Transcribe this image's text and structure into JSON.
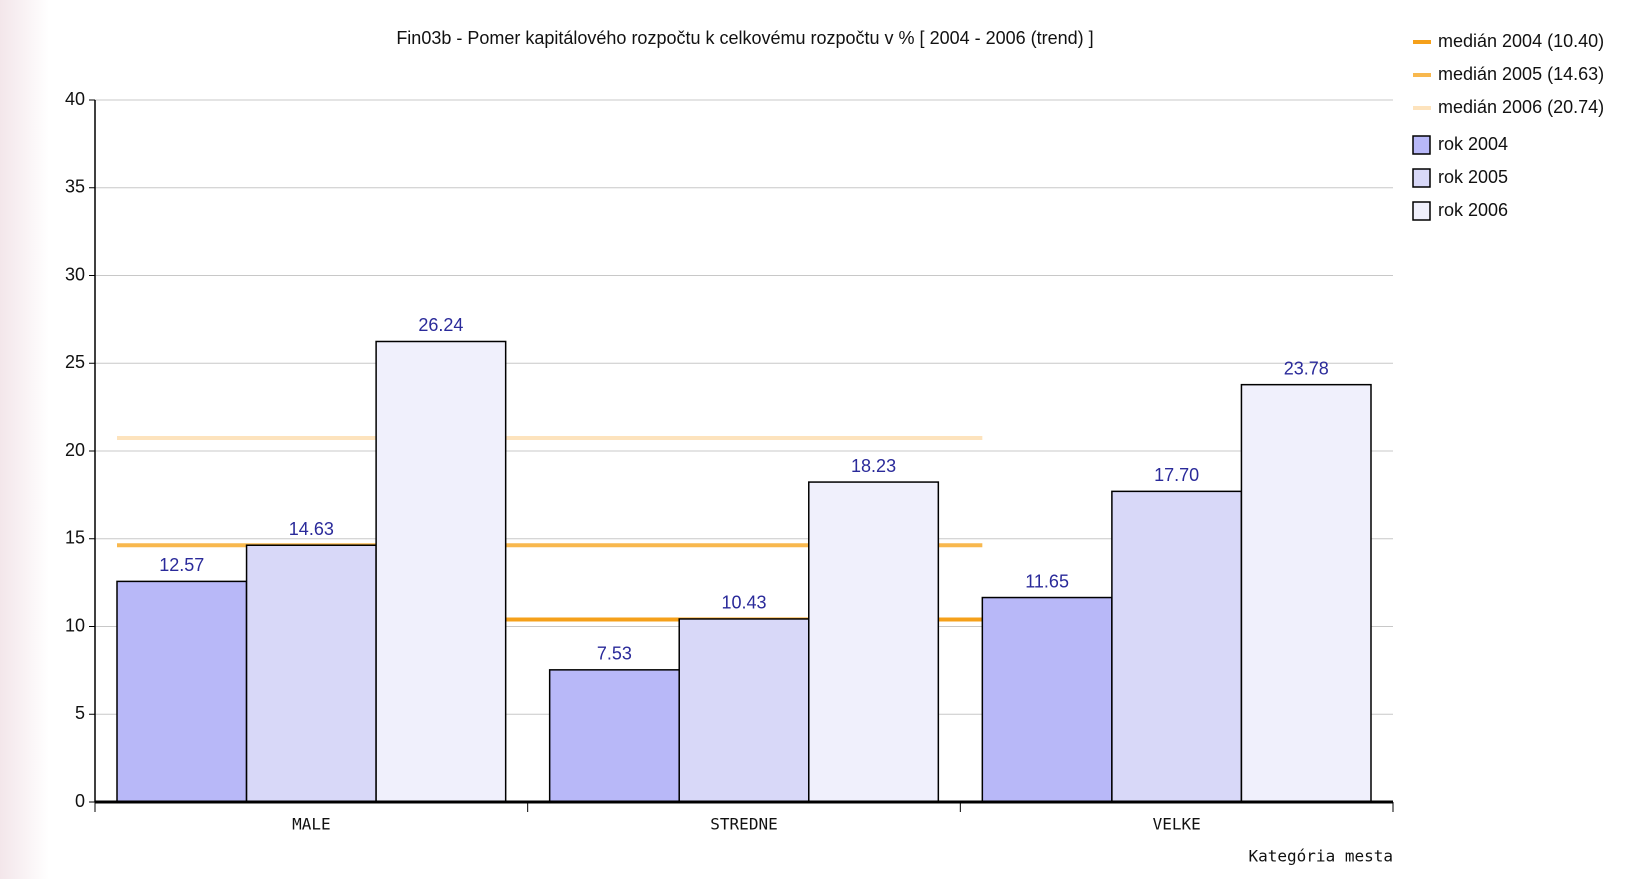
{
  "chart_data": {
    "type": "bar",
    "title": "Fin03b - Pomer kapitálového rozpočtu k celkovému rozpočtu v % [ 2004 - 2006 (trend) ]",
    "x_label": "Kategória mesta",
    "categories": [
      "MALE",
      "STREDNE",
      "VELKE"
    ],
    "series": [
      {
        "name": "rok 2004",
        "color": "#b8b8f8",
        "values": [
          12.57,
          7.53,
          11.65
        ],
        "value_labels": [
          "12.57",
          "7.53",
          "11.65"
        ]
      },
      {
        "name": "rok 2005",
        "color": "#d8d8f8",
        "values": [
          14.63,
          10.43,
          17.7
        ],
        "value_labels": [
          "14.63",
          "10.43",
          "17.70"
        ]
      },
      {
        "name": "rok 2006",
        "color": "#f0f0fc",
        "values": [
          26.24,
          18.23,
          23.78
        ],
        "value_labels": [
          "26.24",
          "18.23",
          "23.78"
        ]
      }
    ],
    "medians": [
      {
        "name": "medián 2004 (10.40)",
        "value": 10.4,
        "color": "#f5a01a"
      },
      {
        "name": "medián 2005 (14.63)",
        "value": 14.63,
        "color": "#f8b84e"
      },
      {
        "name": "medián 2006 (20.74)",
        "value": 20.74,
        "color": "#fde3bd"
      }
    ],
    "ylim": [
      0,
      40
    ],
    "yticks": [
      0,
      5,
      10,
      15,
      20,
      25,
      30,
      35,
      40
    ],
    "grid": true
  }
}
